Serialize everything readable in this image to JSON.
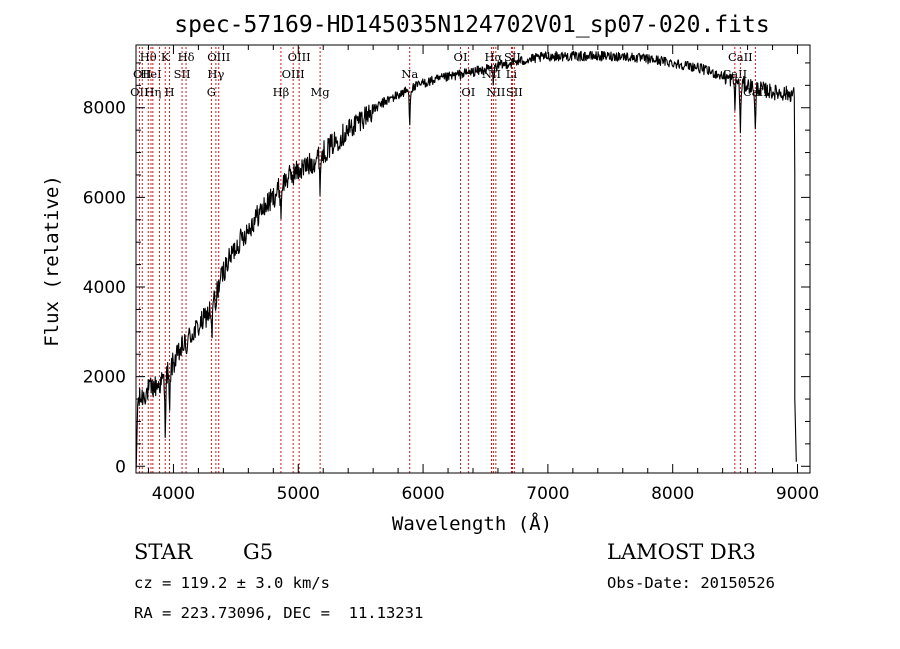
{
  "info": {
    "object_class": "STAR",
    "subclass": "G5",
    "survey": "LAMOST DR3",
    "cz": "cz = 119.2 ± 3.0 km/s",
    "obs_date": "Obs-Date: 20150526",
    "coords": "RA = 223.73096, DEC =  11.13231"
  },
  "chart_data": {
    "type": "line",
    "title": "spec-57169-HD145035N124702V01_sp07-020.fits",
    "xlabel": "Wavelength (Å)",
    "ylabel": "Flux (relative)",
    "xlim": [
      3700,
      9100
    ],
    "ylim": [
      -150,
      9400
    ],
    "xticks": [
      4000,
      5000,
      6000,
      7000,
      8000,
      9000
    ],
    "yticks": [
      0,
      2000,
      4000,
      6000,
      8000
    ],
    "continuum": [
      [
        3700,
        1400
      ],
      [
        3800,
        1700
      ],
      [
        3900,
        1850
      ],
      [
        4000,
        2300
      ],
      [
        4100,
        2800
      ],
      [
        4200,
        3100
      ],
      [
        4300,
        3500
      ],
      [
        4400,
        4350
      ],
      [
        4500,
        4900
      ],
      [
        4600,
        5300
      ],
      [
        4700,
        5700
      ],
      [
        4800,
        6000
      ],
      [
        4900,
        6400
      ],
      [
        5000,
        6600
      ],
      [
        5100,
        6750
      ],
      [
        5200,
        7000
      ],
      [
        5300,
        7250
      ],
      [
        5500,
        7750
      ],
      [
        5700,
        8150
      ],
      [
        6000,
        8550
      ],
      [
        6300,
        8750
      ],
      [
        6500,
        8850
      ],
      [
        6700,
        9000
      ],
      [
        7000,
        9150
      ],
      [
        7300,
        9150
      ],
      [
        7600,
        9150
      ],
      [
        7900,
        9050
      ],
      [
        8200,
        8900
      ],
      [
        8500,
        8600
      ],
      [
        8600,
        8500
      ],
      [
        8800,
        8350
      ],
      [
        8960,
        8300
      ]
    ],
    "absorption_features": [
      {
        "x": 3934,
        "depth": 1100
      },
      {
        "x": 3969,
        "depth": 1000
      },
      {
        "x": 4101,
        "depth": 350
      },
      {
        "x": 4308,
        "depth": 700
      },
      {
        "x": 4340,
        "depth": 450
      },
      {
        "x": 4861,
        "depth": 600
      },
      {
        "x": 5175,
        "depth": 650
      },
      {
        "x": 5893,
        "depth": 700
      },
      {
        "x": 6563,
        "depth": 350
      },
      {
        "x": 8498,
        "depth": 500
      },
      {
        "x": 8542,
        "depth": 1100
      },
      {
        "x": 8662,
        "depth": 1000
      }
    ],
    "spectral_lines": [
      {
        "x": 3727,
        "label": "OII",
        "row": 2
      },
      {
        "x": 3750,
        "label": "OII",
        "row": 1
      },
      {
        "x": 3798,
        "label": "Hθ",
        "row": 0
      },
      {
        "x": 3820,
        "label": "HeI",
        "row": 1
      },
      {
        "x": 3835,
        "label": "Hη",
        "row": 2
      },
      {
        "x": 3889,
        "label": "",
        "row": 0
      },
      {
        "x": 3934,
        "label": "K",
        "row": 0
      },
      {
        "x": 3969,
        "label": "H",
        "row": 2
      },
      {
        "x": 4069,
        "label": "SII",
        "row": 1
      },
      {
        "x": 4101,
        "label": "Hδ",
        "row": 0
      },
      {
        "x": 4304,
        "label": "G",
        "row": 2
      },
      {
        "x": 4340,
        "label": "Hγ",
        "row": 1
      },
      {
        "x": 4363,
        "label": "OIII",
        "row": 0
      },
      {
        "x": 4861,
        "label": "Hβ",
        "row": 2
      },
      {
        "x": 4959,
        "label": "OIII",
        "row": 1
      },
      {
        "x": 5007,
        "label": "OIII",
        "row": 0
      },
      {
        "x": 5175,
        "label": "Mg",
        "row": 2
      },
      {
        "x": 5893,
        "label": "Na",
        "row": 1
      },
      {
        "x": 6300,
        "label": "OI",
        "row": 0
      },
      {
        "x": 6363,
        "label": "OI",
        "row": 2
      },
      {
        "x": 6548,
        "label": "NII",
        "row": 1
      },
      {
        "x": 6563,
        "label": "Hα",
        "row": 0
      },
      {
        "x": 6583,
        "label": "NII",
        "row": 2
      },
      {
        "x": 6708,
        "label": "Li",
        "row": 1
      },
      {
        "x": 6716,
        "label": "SII",
        "row": 0
      },
      {
        "x": 6731,
        "label": "SII",
        "row": 2
      },
      {
        "x": 8498,
        "label": "CaII",
        "row": 1
      },
      {
        "x": 8542,
        "label": "CaII",
        "row": 0
      },
      {
        "x": 8662,
        "label": "CaII",
        "row": 2
      }
    ],
    "colors": {
      "spectrum": "#000000",
      "line_markers": "#cc0000",
      "axes": "#000000"
    }
  }
}
